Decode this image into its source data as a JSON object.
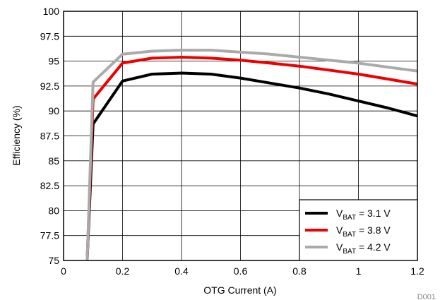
{
  "chart_data": {
    "type": "line",
    "xlabel": "OTG Current (A)",
    "ylabel": "Efficiency (%)",
    "xlim": [
      0,
      1.2
    ],
    "ylim": [
      75,
      100
    ],
    "x_ticks": [
      "0",
      "0.2",
      "0.4",
      "0.6",
      "0.8",
      "1",
      "1.2"
    ],
    "y_ticks": [
      "75",
      "77.5",
      "80",
      "82.5",
      "85",
      "87.5",
      "90",
      "92.5",
      "95",
      "97.5",
      "100"
    ],
    "grid": true,
    "legend_position": "bottom-right",
    "figure_id": "D001",
    "series": [
      {
        "name_main": "V",
        "name_sub": "BAT",
        "name_rest": " = 3.1 V",
        "color": "#000000",
        "x": [
          0.08,
          0.1,
          0.2,
          0.3,
          0.4,
          0.5,
          0.6,
          0.7,
          0.8,
          0.9,
          1.0,
          1.1,
          1.2
        ],
        "y": [
          75,
          88.7,
          93.0,
          93.7,
          93.8,
          93.7,
          93.3,
          92.8,
          92.3,
          91.7,
          91.0,
          90.3,
          89.5
        ]
      },
      {
        "name_main": "V",
        "name_sub": "BAT",
        "name_rest": " = 3.8 V",
        "color": "#ee0000",
        "x": [
          0.08,
          0.1,
          0.2,
          0.3,
          0.4,
          0.5,
          0.6,
          0.7,
          0.8,
          0.9,
          1.0,
          1.1,
          1.2
        ],
        "y": [
          75,
          91.2,
          94.8,
          95.3,
          95.4,
          95.3,
          95.1,
          94.8,
          94.5,
          94.1,
          93.7,
          93.2,
          92.7
        ]
      },
      {
        "name_main": "V",
        "name_sub": "BAT",
        "name_rest": " = 4.2 V",
        "color": "#aaaaaa",
        "x": [
          0.08,
          0.1,
          0.2,
          0.3,
          0.4,
          0.5,
          0.6,
          0.7,
          0.8,
          0.9,
          1.0,
          1.1,
          1.2
        ],
        "y": [
          75,
          92.9,
          95.7,
          96.0,
          96.1,
          96.1,
          95.9,
          95.7,
          95.4,
          95.1,
          94.8,
          94.4,
          94.0
        ]
      }
    ]
  }
}
